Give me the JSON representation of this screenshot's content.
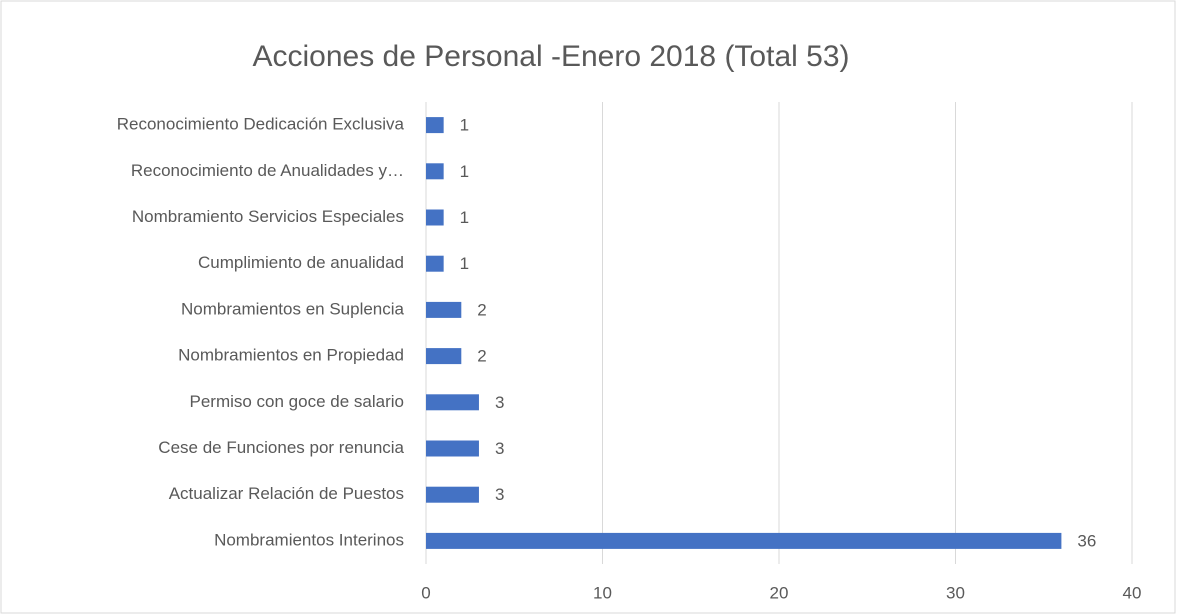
{
  "chart_data": {
    "type": "bar",
    "orientation": "horizontal",
    "title": "Acciones de Personal -Enero 2018 (Total 53)",
    "categories": [
      "Reconocimiento Dedicación Exclusiva",
      "Reconocimiento de Anualidades y…",
      "Nombramiento Servicios Especiales",
      "Cumplimiento de anualidad",
      "Nombramientos en Suplencia",
      "Nombramientos en Propiedad",
      "Permiso con goce de salario",
      "Cese de Funciones por renuncia",
      "Actualizar Relación de Puestos",
      "Nombramientos Interinos"
    ],
    "values": [
      1,
      1,
      1,
      1,
      2,
      2,
      3,
      3,
      3,
      36
    ],
    "color": "#4472c4",
    "xlim": [
      0,
      40
    ],
    "xticks": [
      0,
      10,
      20,
      30,
      40
    ],
    "grid": true
  }
}
